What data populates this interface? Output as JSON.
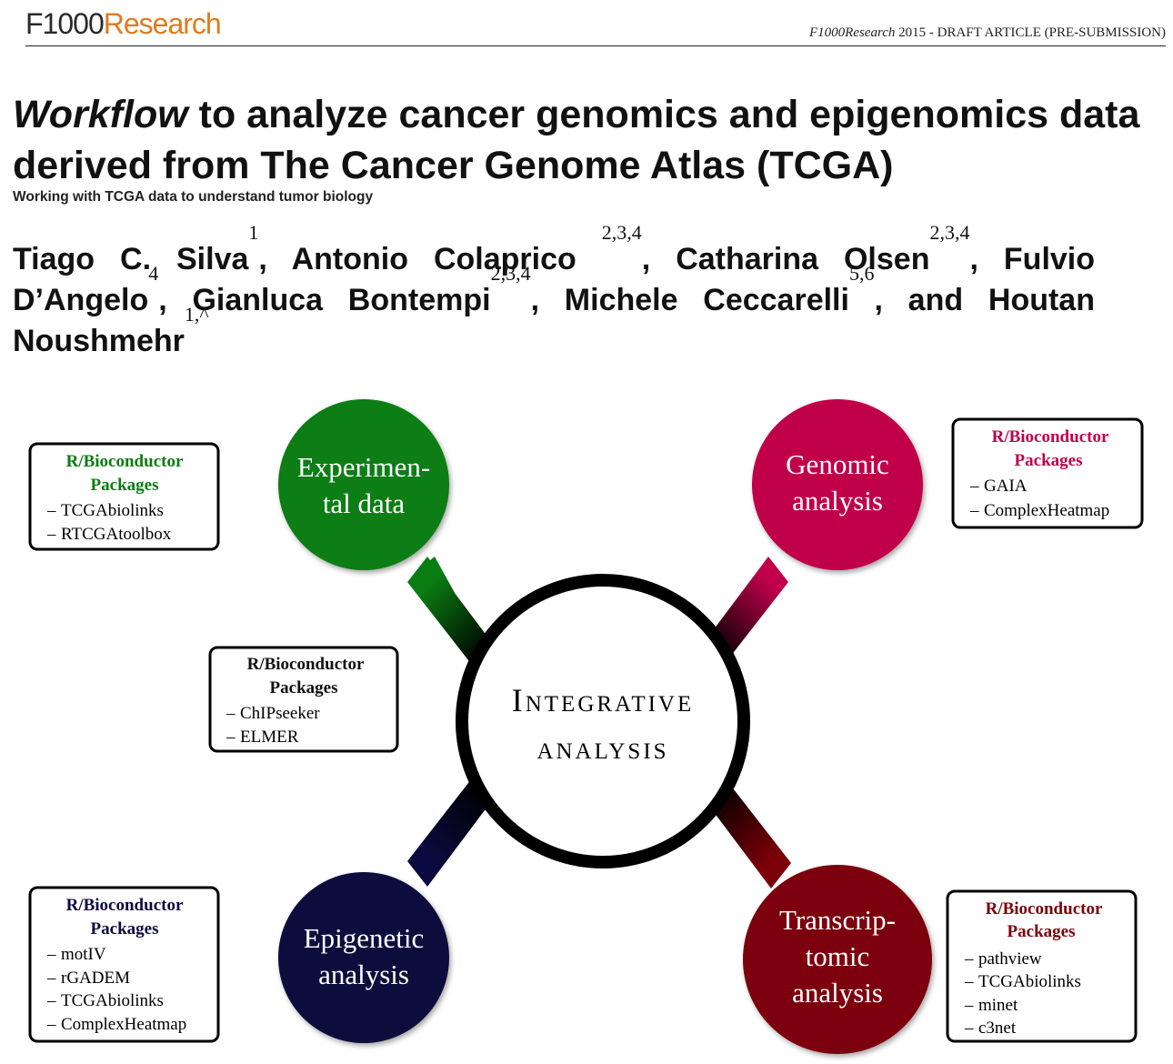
{
  "header": {
    "logo_part1": "F1000",
    "logo_part2": "Research",
    "journal": "F1000Research",
    "info": " 2015 - DRAFT ARTICLE (PRE-SUBMISSION)"
  },
  "title": {
    "italic": "Workflow",
    "rest": " to analyze cancer genomics and epigenomics data derived from The Cancer Genome Atlas (TCGA)"
  },
  "subtitle": "Working with TCGA data to understand tumor biology",
  "authors": [
    {
      "name": "Tiago C. Silva",
      "aff": "1",
      "sep": ", "
    },
    {
      "name": "Antonio Colaprico ",
      "aff": "2,3,4",
      "sep": ", "
    },
    {
      "name": "Catharina Olsen",
      "aff": "2,3,4",
      "sep": ", "
    },
    {
      "name": "Fulvio D’Angelo",
      "aff": "4",
      "sep": ", "
    },
    {
      "name": "Gianluca Bontempi",
      "aff": "2,3,4",
      "sep": ", "
    },
    {
      "name": "Michele Ceccarelli",
      "aff": "5,6",
      "sep": ", and "
    },
    {
      "name": "Houtan Noushmehr",
      "aff": "1,^",
      "sep": ""
    }
  ],
  "diagram": {
    "center": {
      "line1": "Integrative",
      "line2": "analysis"
    },
    "colors": {
      "green": "#0a7d12",
      "crimson": "#c0004a",
      "navy": "#0b0a3e",
      "maroon": "#7c0008"
    },
    "nodes": {
      "experimental": {
        "line1": "Experimen-",
        "line2": "tal data"
      },
      "genomic": {
        "line1": "Genomic",
        "line2": "analysis"
      },
      "epigenetic": {
        "line1": "Epigenetic",
        "line2": "analysis"
      },
      "transcriptomic": {
        "line1": "Transcrip-",
        "line2": "tomic",
        "line3": "analysis"
      }
    },
    "boxes": {
      "experimental": {
        "heading1": "R/Bioconductor",
        "heading2": "Packages",
        "items": [
          "TCGAbiolinks",
          "RTCGAtoolbox"
        ]
      },
      "genomic": {
        "heading1": "R/Bioconductor",
        "heading2": "Packages",
        "items": [
          "GAIA",
          "ComplexHeatmap"
        ]
      },
      "integrative": {
        "heading1": "R/Bioconductor",
        "heading2": "Packages",
        "items": [
          "ChIPseeker",
          "ELMER"
        ]
      },
      "epigenetic": {
        "heading1": "R/Bioconductor",
        "heading2": "Packages",
        "items": [
          "motIV",
          "rGADEM",
          "TCGAbiolinks",
          "ComplexHeatmap"
        ]
      },
      "transcriptomic": {
        "heading1": "R/Bioconductor",
        "heading2": "Packages",
        "items": [
          "pathview",
          "TCGAbiolinks",
          "minet",
          "c3net"
        ]
      }
    }
  }
}
